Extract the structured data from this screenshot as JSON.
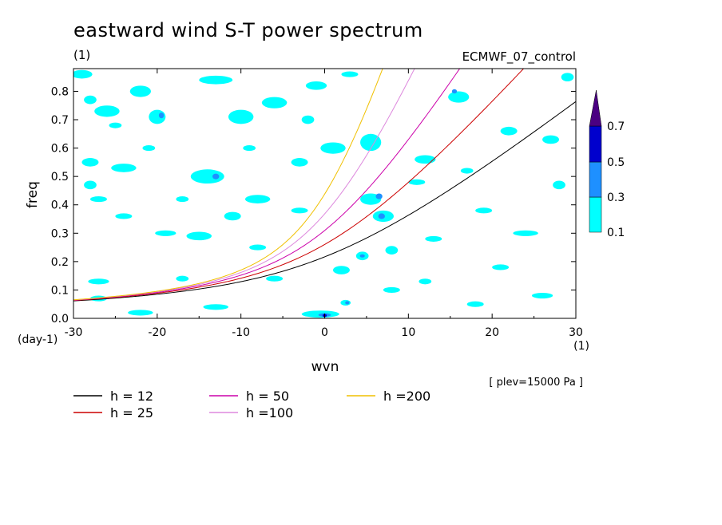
{
  "chart_data": {
    "type": "heatmap",
    "title": "eastward wind S-T power spectrum",
    "subtitle_left": "(1)",
    "subtitle_right": "ECMWF_07_control",
    "xlabel": "wvn",
    "ylabel": "freq",
    "x_unit": "(1)",
    "y_unit": "(day-1)",
    "xlim": [
      -30,
      30
    ],
    "ylim": [
      0,
      0.88
    ],
    "xticks": [
      "-30",
      "-20",
      "-10",
      "0",
      "10",
      "20",
      "30"
    ],
    "xtick_values": [
      -30,
      -20,
      -10,
      0,
      10,
      20,
      30
    ],
    "yticks": [
      "0.0",
      "0.1",
      "0.2",
      "0.3",
      "0.4",
      "0.5",
      "0.6",
      "0.7",
      "0.8"
    ],
    "ytick_values": [
      0,
      0.1,
      0.2,
      0.3,
      0.4,
      0.5,
      0.6,
      0.7,
      0.8
    ],
    "annotation": "[ plev=15000 Pa ]",
    "colorbar": {
      "levels": [
        "0.1",
        "0.3",
        "0.5",
        "0.7"
      ],
      "level_values": [
        0.1,
        0.3,
        0.5,
        0.7
      ],
      "colors": [
        "#00ffff",
        "#1e90ff",
        "#0000cd",
        "#4b0082"
      ],
      "extend": "max"
    },
    "dispersion_curves": [
      {
        "name": "h = 12",
        "h": 12,
        "color": "#000000"
      },
      {
        "name": "h = 25",
        "h": 25,
        "color": "#cc0000"
      },
      {
        "name": "h = 50",
        "h": 50,
        "color": "#cc00aa"
      },
      {
        "name": "h =100",
        "h": 100,
        "color": "#dd88dd"
      },
      {
        "name": "h =200",
        "h": 200,
        "color": "#f0c000"
      }
    ],
    "contours": [
      {
        "level": 0.1,
        "x": -29,
        "y": 0.86,
        "w": 2.5,
        "h": 0.03
      },
      {
        "level": 0.1,
        "x": -28,
        "y": 0.77,
        "w": 1.5,
        "h": 0.03
      },
      {
        "level": 0.1,
        "x": -26,
        "y": 0.73,
        "w": 3,
        "h": 0.04
      },
      {
        "level": 0.1,
        "x": -25,
        "y": 0.68,
        "w": 1.5,
        "h": 0.02
      },
      {
        "level": 0.1,
        "x": -22,
        "y": 0.8,
        "w": 2.5,
        "h": 0.04
      },
      {
        "level": 0.1,
        "x": -20,
        "y": 0.71,
        "w": 2,
        "h": 0.05
      },
      {
        "level": 0.3,
        "x": -19.5,
        "y": 0.715,
        "w": 0.6,
        "h": 0.02
      },
      {
        "level": 0.1,
        "x": -13,
        "y": 0.84,
        "w": 4,
        "h": 0.03
      },
      {
        "level": 0.1,
        "x": -10,
        "y": 0.71,
        "w": 3,
        "h": 0.05
      },
      {
        "level": 0.1,
        "x": -6,
        "y": 0.76,
        "w": 3,
        "h": 0.04
      },
      {
        "level": 0.1,
        "x": -1,
        "y": 0.82,
        "w": 2.5,
        "h": 0.03
      },
      {
        "level": 0.1,
        "x": 3,
        "y": 0.86,
        "w": 2,
        "h": 0.02
      },
      {
        "level": 0.1,
        "x": -28,
        "y": 0.55,
        "w": 2,
        "h": 0.03
      },
      {
        "level": 0.1,
        "x": -24,
        "y": 0.53,
        "w": 3,
        "h": 0.03
      },
      {
        "level": 0.1,
        "x": -21,
        "y": 0.6,
        "w": 1.5,
        "h": 0.02
      },
      {
        "level": 0.1,
        "x": -28,
        "y": 0.47,
        "w": 1.5,
        "h": 0.03
      },
      {
        "level": 0.1,
        "x": -27,
        "y": 0.42,
        "w": 2,
        "h": 0.02
      },
      {
        "level": 0.1,
        "x": -24,
        "y": 0.36,
        "w": 2,
        "h": 0.02
      },
      {
        "level": 0.1,
        "x": -19,
        "y": 0.3,
        "w": 2.5,
        "h": 0.02
      },
      {
        "level": 0.1,
        "x": -14,
        "y": 0.5,
        "w": 4,
        "h": 0.05
      },
      {
        "level": 0.3,
        "x": -13,
        "y": 0.5,
        "w": 0.8,
        "h": 0.02
      },
      {
        "level": 0.1,
        "x": -15,
        "y": 0.29,
        "w": 3,
        "h": 0.03
      },
      {
        "level": 0.1,
        "x": -11,
        "y": 0.36,
        "w": 2,
        "h": 0.03
      },
      {
        "level": 0.1,
        "x": -8,
        "y": 0.42,
        "w": 3,
        "h": 0.03
      },
      {
        "level": 0.1,
        "x": -8,
        "y": 0.25,
        "w": 2,
        "h": 0.02
      },
      {
        "level": 0.1,
        "x": -3,
        "y": 0.55,
        "w": 2,
        "h": 0.03
      },
      {
        "level": 0.1,
        "x": -3,
        "y": 0.38,
        "w": 2,
        "h": 0.02
      },
      {
        "level": 0.1,
        "x": 1,
        "y": 0.6,
        "w": 3,
        "h": 0.04
      },
      {
        "level": 0.1,
        "x": 2,
        "y": 0.17,
        "w": 2,
        "h": 0.03
      },
      {
        "level": 0.1,
        "x": -27,
        "y": 0.13,
        "w": 2.5,
        "h": 0.02
      },
      {
        "level": 0.1,
        "x": -27,
        "y": 0.07,
        "w": 2,
        "h": 0.02
      },
      {
        "level": 0.1,
        "x": -22,
        "y": 0.02,
        "w": 3,
        "h": 0.02
      },
      {
        "level": 0.1,
        "x": -13,
        "y": 0.04,
        "w": 3,
        "h": 0.02
      },
      {
        "level": 0.1,
        "x": -6,
        "y": 0.14,
        "w": 2,
        "h": 0.02
      },
      {
        "level": 0.1,
        "x": -0.5,
        "y": 0.015,
        "w": 4.5,
        "h": 0.025
      },
      {
        "level": 0.3,
        "x": 0,
        "y": 0.012,
        "w": 1.5,
        "h": 0.012
      },
      {
        "level": 0.5,
        "x": 0,
        "y": 0.01,
        "w": 0.5,
        "h": 0.007
      },
      {
        "level": 0.1,
        "x": 2.5,
        "y": 0.055,
        "w": 1.2,
        "h": 0.02
      },
      {
        "level": 0.3,
        "x": 2.7,
        "y": 0.055,
        "w": 0.5,
        "h": 0.01
      },
      {
        "level": 0.1,
        "x": 5.5,
        "y": 0.62,
        "w": 2.5,
        "h": 0.06
      },
      {
        "level": 0.1,
        "x": 5.5,
        "y": 0.42,
        "w": 2.5,
        "h": 0.04
      },
      {
        "level": 0.3,
        "x": 6.5,
        "y": 0.43,
        "w": 0.8,
        "h": 0.02
      },
      {
        "level": 0.1,
        "x": 7,
        "y": 0.36,
        "w": 2.5,
        "h": 0.04
      },
      {
        "level": 0.3,
        "x": 6.8,
        "y": 0.36,
        "w": 0.8,
        "h": 0.02
      },
      {
        "level": 0.1,
        "x": 4.5,
        "y": 0.22,
        "w": 1.5,
        "h": 0.03
      },
      {
        "level": 0.3,
        "x": 4.5,
        "y": 0.22,
        "w": 0.6,
        "h": 0.01
      },
      {
        "level": 0.1,
        "x": 8,
        "y": 0.24,
        "w": 1.5,
        "h": 0.03
      },
      {
        "level": 0.1,
        "x": 11,
        "y": 0.48,
        "w": 2,
        "h": 0.02
      },
      {
        "level": 0.1,
        "x": 12,
        "y": 0.56,
        "w": 2.5,
        "h": 0.03
      },
      {
        "level": 0.1,
        "x": 13,
        "y": 0.28,
        "w": 2,
        "h": 0.02
      },
      {
        "level": 0.1,
        "x": 16,
        "y": 0.78,
        "w": 2.5,
        "h": 0.04
      },
      {
        "level": 0.3,
        "x": 15.5,
        "y": 0.8,
        "w": 0.6,
        "h": 0.015
      },
      {
        "level": 0.1,
        "x": 17,
        "y": 0.52,
        "w": 1.5,
        "h": 0.02
      },
      {
        "level": 0.1,
        "x": 19,
        "y": 0.38,
        "w": 2,
        "h": 0.02
      },
      {
        "level": 0.1,
        "x": 22,
        "y": 0.66,
        "w": 2,
        "h": 0.03
      },
      {
        "level": 0.1,
        "x": 21,
        "y": 0.18,
        "w": 2,
        "h": 0.02
      },
      {
        "level": 0.1,
        "x": 24,
        "y": 0.3,
        "w": 3,
        "h": 0.02
      },
      {
        "level": 0.1,
        "x": 26,
        "y": 0.08,
        "w": 2.5,
        "h": 0.02
      },
      {
        "level": 0.1,
        "x": 27,
        "y": 0.63,
        "w": 2,
        "h": 0.03
      },
      {
        "level": 0.1,
        "x": 28,
        "y": 0.47,
        "w": 1.5,
        "h": 0.03
      },
      {
        "level": 0.1,
        "x": 29,
        "y": 0.85,
        "w": 1.5,
        "h": 0.03
      },
      {
        "level": 0.1,
        "x": 18,
        "y": 0.05,
        "w": 2,
        "h": 0.02
      },
      {
        "level": 0.1,
        "x": 12,
        "y": 0.13,
        "w": 1.5,
        "h": 0.02
      },
      {
        "level": 0.1,
        "x": 8,
        "y": 0.1,
        "w": 2,
        "h": 0.02
      },
      {
        "level": 0.1,
        "x": -17,
        "y": 0.14,
        "w": 1.5,
        "h": 0.02
      },
      {
        "level": 0.1,
        "x": -2,
        "y": 0.7,
        "w": 1.5,
        "h": 0.03
      },
      {
        "level": 0.1,
        "x": -9,
        "y": 0.6,
        "w": 1.5,
        "h": 0.02
      },
      {
        "level": 0.1,
        "x": -17,
        "y": 0.42,
        "w": 1.5,
        "h": 0.02
      }
    ]
  }
}
